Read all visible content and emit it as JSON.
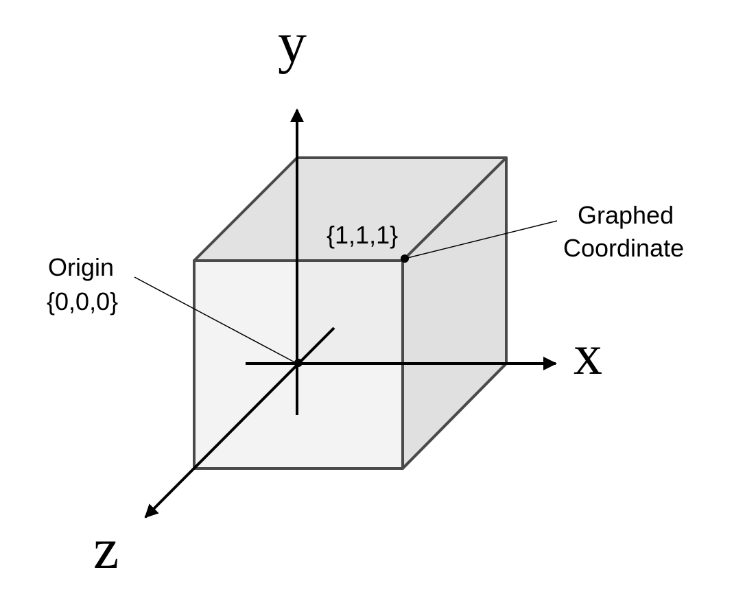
{
  "axes": {
    "x_label": "x",
    "y_label": "y",
    "z_label": "z"
  },
  "origin": {
    "title": "Origin",
    "coords": "{0,0,0}"
  },
  "point": {
    "coords": "{1,1,1}",
    "label_line1": "Graphed",
    "label_line2": "Coordinate"
  },
  "colors": {
    "front_face": "#efefef",
    "top_face": "#e2e2e2",
    "right_face": "#e0e0e0",
    "edge": "#4a4a4a",
    "axis": "#000000"
  }
}
